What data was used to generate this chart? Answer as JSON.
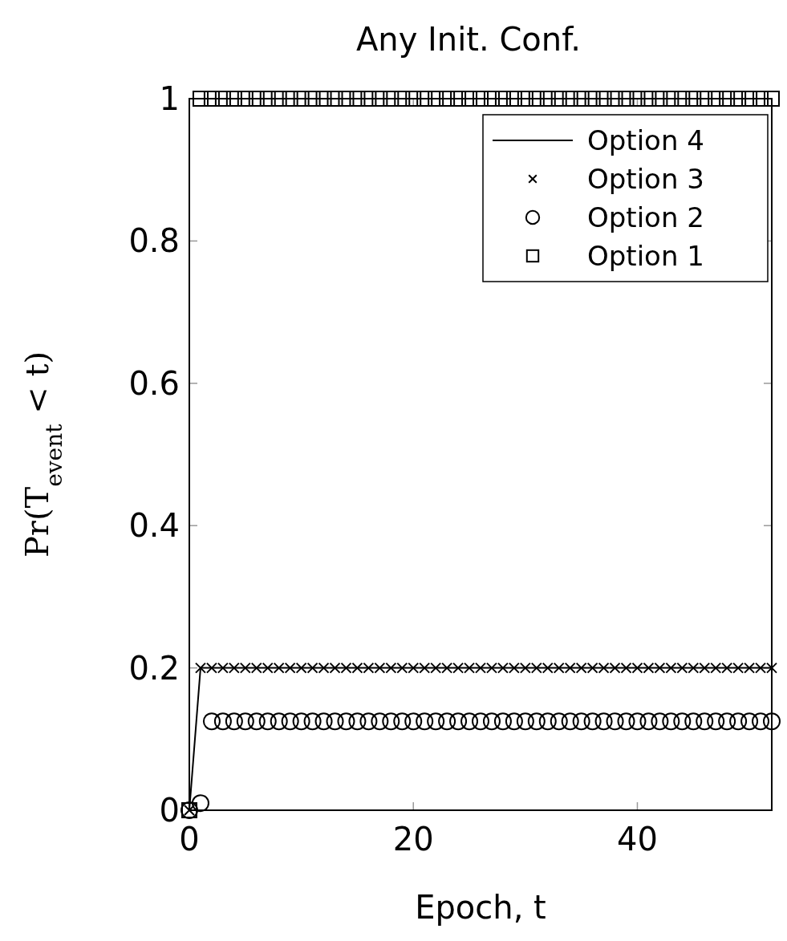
{
  "chart_data": {
    "type": "scatter",
    "title": "Any Init. Conf.",
    "xlabel": "Epoch, t",
    "ylabel": "Pr(T$_{event}$ < t)",
    "x": [
      0,
      1,
      2,
      3,
      4,
      5,
      6,
      7,
      8,
      9,
      10,
      11,
      12,
      13,
      14,
      15,
      16,
      17,
      18,
      19,
      20,
      21,
      22,
      23,
      24,
      25,
      26,
      27,
      28,
      29,
      30,
      31,
      32,
      33,
      34,
      35,
      36,
      37,
      38,
      39,
      40,
      41,
      42,
      43,
      44,
      45,
      46,
      47,
      48,
      49,
      50,
      51,
      52
    ],
    "xlim": [
      0,
      52
    ],
    "xticks": [
      0,
      20,
      40
    ],
    "ylim": [
      0,
      1
    ],
    "yticks": [
      0,
      0.2,
      0.4,
      0.6,
      0.8,
      1
    ],
    "legend": "top right",
    "series": [
      {
        "name": "Option 4",
        "type": "line",
        "marker": "none",
        "line_style": "solid",
        "color": "#000000",
        "values": [
          0,
          0.2,
          0.2,
          0.2,
          0.2,
          0.2,
          0.2,
          0.2,
          0.2,
          0.2,
          0.2,
          0.2,
          0.2,
          0.2,
          0.2,
          0.2,
          0.2,
          0.2,
          0.2,
          0.2,
          0.2,
          0.2,
          0.2,
          0.2,
          0.2,
          0.2,
          0.2,
          0.2,
          0.2,
          0.2,
          0.2,
          0.2,
          0.2,
          0.2,
          0.2,
          0.2,
          0.2,
          0.2,
          0.2,
          0.2,
          0.2,
          0.2,
          0.2,
          0.2,
          0.2,
          0.2,
          0.2,
          0.2,
          0.2,
          0.2,
          0.2,
          0.2,
          0.2
        ]
      },
      {
        "name": "Option 3",
        "marker": "cross",
        "color": "#000000",
        "values": [
          0,
          0.2,
          0.2,
          0.2,
          0.2,
          0.2,
          0.2,
          0.2,
          0.2,
          0.2,
          0.2,
          0.2,
          0.2,
          0.2,
          0.2,
          0.2,
          0.2,
          0.2,
          0.2,
          0.2,
          0.2,
          0.2,
          0.2,
          0.2,
          0.2,
          0.2,
          0.2,
          0.2,
          0.2,
          0.2,
          0.2,
          0.2,
          0.2,
          0.2,
          0.2,
          0.2,
          0.2,
          0.2,
          0.2,
          0.2,
          0.2,
          0.2,
          0.2,
          0.2,
          0.2,
          0.2,
          0.2,
          0.2,
          0.2,
          0.2,
          0.2,
          0.2,
          0.2
        ]
      },
      {
        "name": "Option 2",
        "marker": "circle",
        "color": "#000000",
        "values": [
          0,
          0.01,
          0.125,
          0.125,
          0.125,
          0.125,
          0.125,
          0.125,
          0.125,
          0.125,
          0.125,
          0.125,
          0.125,
          0.125,
          0.125,
          0.125,
          0.125,
          0.125,
          0.125,
          0.125,
          0.125,
          0.125,
          0.125,
          0.125,
          0.125,
          0.125,
          0.125,
          0.125,
          0.125,
          0.125,
          0.125,
          0.125,
          0.125,
          0.125,
          0.125,
          0.125,
          0.125,
          0.125,
          0.125,
          0.125,
          0.125,
          0.125,
          0.125,
          0.125,
          0.125,
          0.125,
          0.125,
          0.125,
          0.125,
          0.125,
          0.125,
          0.125,
          0.125
        ]
      },
      {
        "name": "Option 1",
        "marker": "square",
        "color": "#000000",
        "values": [
          0,
          1,
          1,
          1,
          1,
          1,
          1,
          1,
          1,
          1,
          1,
          1,
          1,
          1,
          1,
          1,
          1,
          1,
          1,
          1,
          1,
          1,
          1,
          1,
          1,
          1,
          1,
          1,
          1,
          1,
          1,
          1,
          1,
          1,
          1,
          1,
          1,
          1,
          1,
          1,
          1,
          1,
          1,
          1,
          1,
          1,
          1,
          1,
          1,
          1,
          1,
          1,
          1
        ]
      }
    ]
  }
}
